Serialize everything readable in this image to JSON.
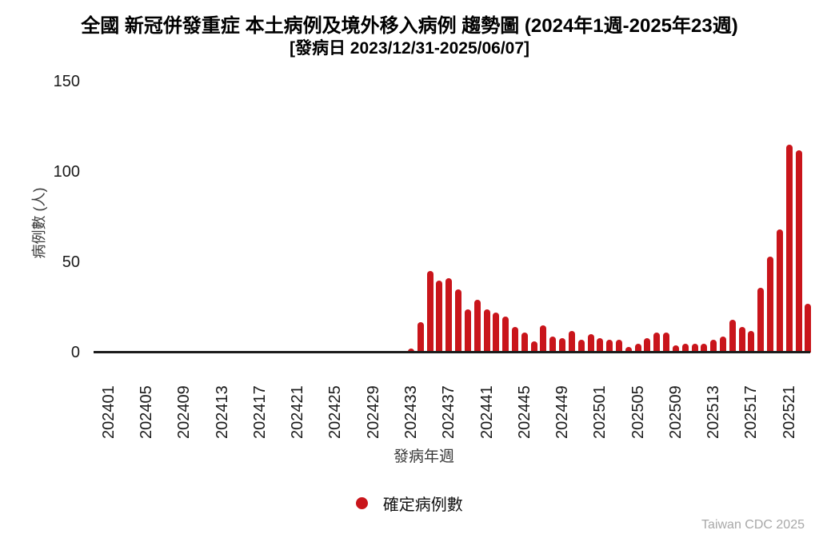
{
  "header": {
    "title": "全國 新冠併發重症 本土病例及境外移入病例 趨勢圖 (2024年1週-2025年23週)",
    "subtitle": "[發病日 2023/12/31-2025/06/07]"
  },
  "watermark": "Taiwan CDC 2025",
  "chart_data": {
    "type": "bar",
    "title": "全國 新冠併發重症 本土病例及境外移入病例 趨勢圖 (2024年1週-2025年23週)",
    "subtitle": "[發病日 2023/12/31-2025/06/07]",
    "xlabel": "發病年週",
    "ylabel": "病例數 (人)",
    "ylim": [
      0,
      150
    ],
    "yticks": [
      0,
      50,
      100,
      150
    ],
    "grid": false,
    "bar_color": "#c9151b",
    "legend_position": "bottom",
    "legend": [
      {
        "label": "確定病例數",
        "color": "#c9151b",
        "marker": "circle"
      }
    ],
    "xtick_labels_shown": [
      "202401",
      "202405",
      "202409",
      "202413",
      "202417",
      "202421",
      "202425",
      "202429",
      "202433",
      "202437",
      "202441",
      "202445",
      "202449",
      "202501",
      "202505",
      "202509",
      "202513",
      "202517",
      "202521"
    ],
    "categories": [
      "202401",
      "202402",
      "202403",
      "202404",
      "202405",
      "202406",
      "202407",
      "202408",
      "202409",
      "202410",
      "202411",
      "202412",
      "202413",
      "202414",
      "202415",
      "202416",
      "202417",
      "202418",
      "202419",
      "202420",
      "202421",
      "202422",
      "202423",
      "202424",
      "202425",
      "202426",
      "202427",
      "202428",
      "202429",
      "202430",
      "202431",
      "202432",
      "202433",
      "202434",
      "202435",
      "202436",
      "202437",
      "202438",
      "202439",
      "202440",
      "202441",
      "202442",
      "202443",
      "202444",
      "202445",
      "202446",
      "202447",
      "202448",
      "202449",
      "202450",
      "202451",
      "202452",
      "202501",
      "202502",
      "202503",
      "202504",
      "202505",
      "202506",
      "202507",
      "202508",
      "202509",
      "202510",
      "202511",
      "202512",
      "202513",
      "202514",
      "202515",
      "202516",
      "202517",
      "202518",
      "202519",
      "202520",
      "202521",
      "202522",
      "202523"
    ],
    "values": [
      0,
      0,
      0,
      0,
      0,
      0,
      0,
      0,
      0,
      0,
      0,
      0,
      0,
      0,
      0,
      0,
      0,
      0,
      0,
      0,
      0,
      0,
      0,
      0,
      0,
      0,
      0,
      0,
      0,
      0,
      0,
      0,
      2,
      17,
      45,
      40,
      41,
      35,
      24,
      29,
      24,
      22,
      20,
      14,
      11,
      6,
      15,
      9,
      8,
      12,
      7,
      10,
      8,
      7,
      7,
      3,
      5,
      8,
      11,
      11,
      4,
      5,
      5,
      5,
      7,
      9,
      18,
      14,
      12,
      36,
      53,
      68,
      115,
      112,
      27
    ]
  }
}
